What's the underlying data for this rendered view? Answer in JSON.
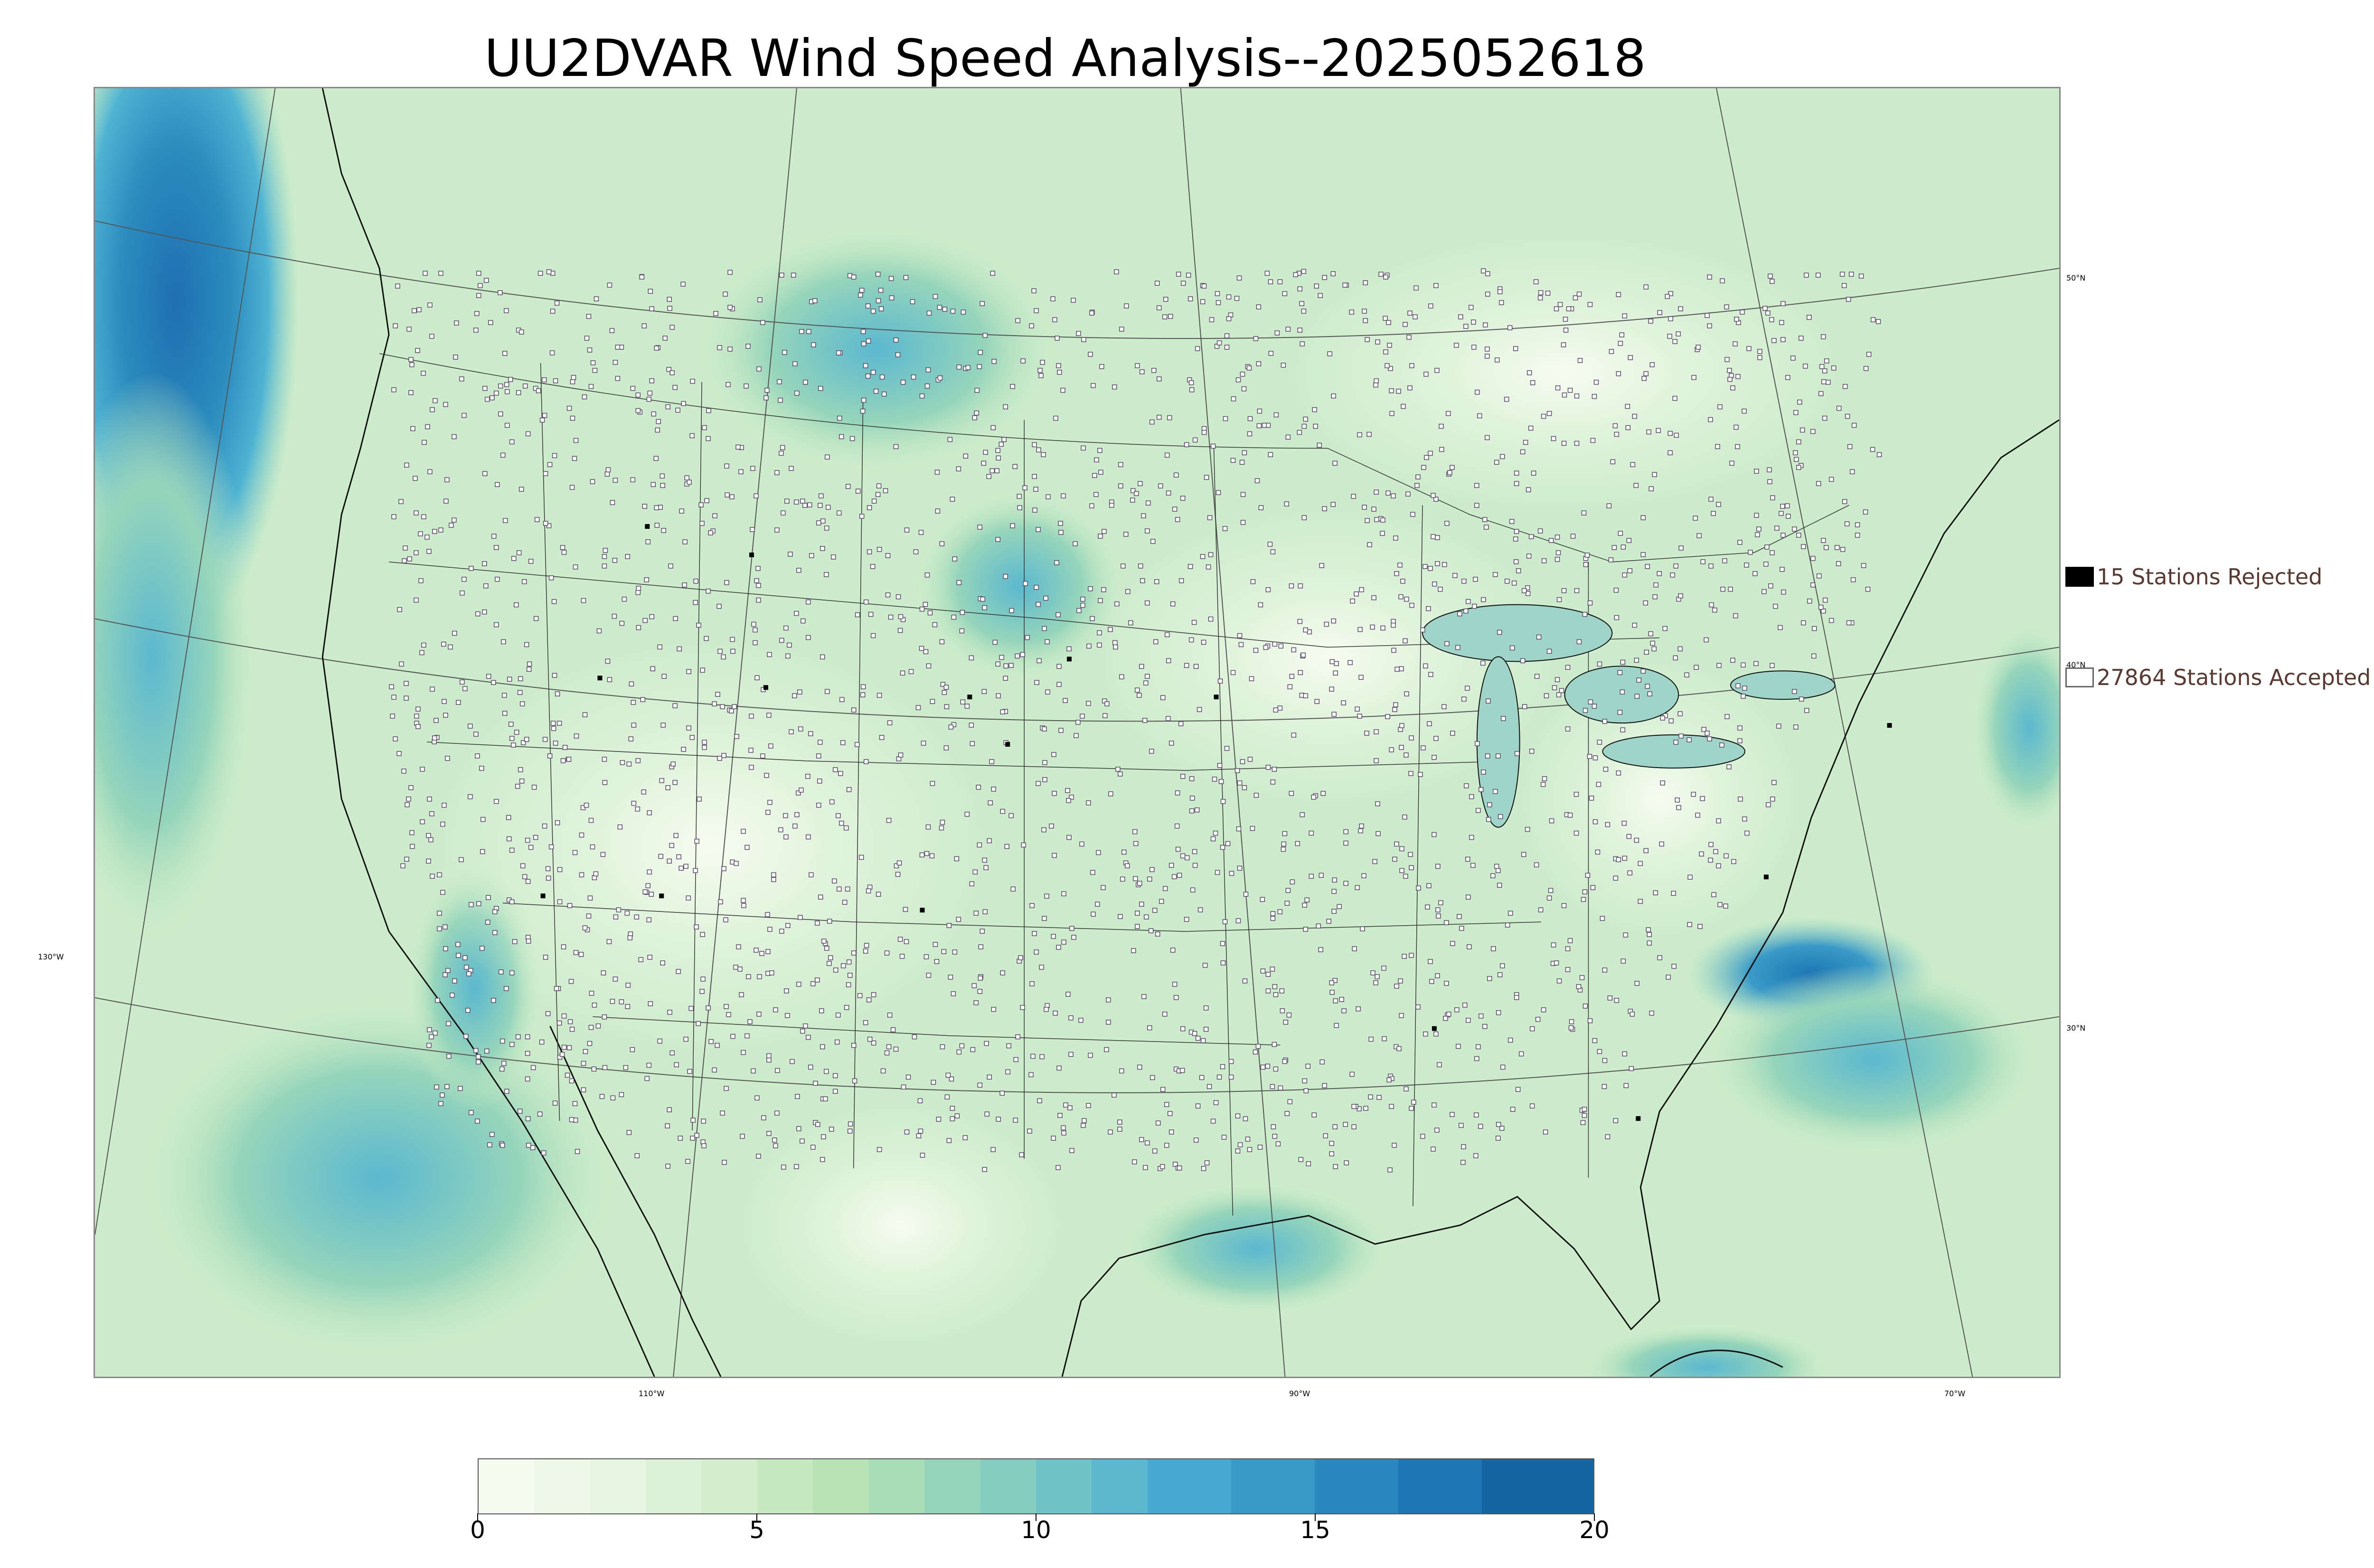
{
  "title": "UU2DVAR Wind Speed Analysis--2025052618",
  "legend": {
    "rejected": {
      "label": "15 Stations Rejected",
      "color": "#000000"
    },
    "accepted": {
      "label": "27864 Stations Accepted",
      "color": "#ffffff"
    }
  },
  "graticule": {
    "longitudes": [
      "130°W",
      "110°W",
      "90°W",
      "70°W"
    ],
    "latitudes": [
      "50°N",
      "40°N",
      "30°N"
    ]
  },
  "colorbar": {
    "min": 0,
    "max": 20,
    "ticks": [
      "0",
      "5",
      "10",
      "15",
      "20"
    ],
    "colors": [
      "#f7fcf0",
      "#eef8e8",
      "#e6f5e1",
      "#dcf1d7",
      "#d2eecc",
      "#c6e9c1",
      "#b8e3b6",
      "#a8ddb5",
      "#96d5bb",
      "#84cdc0",
      "#70c4c7",
      "#5bb8cf",
      "#48aad0",
      "#3a9ac7",
      "#2b88be",
      "#1e76b3",
      "#14649f"
    ],
    "boundaries": [
      0,
      1,
      2,
      3,
      4,
      5,
      6,
      7,
      8,
      9,
      10,
      11,
      12,
      13.5,
      15,
      16.5,
      18,
      20
    ]
  },
  "map": {
    "background_colors": {
      "land": "#d9f0d3",
      "strong_wind": "#2b8cbe",
      "moderate_wind": "#7bccc4",
      "calm": "#f1faec"
    }
  }
}
